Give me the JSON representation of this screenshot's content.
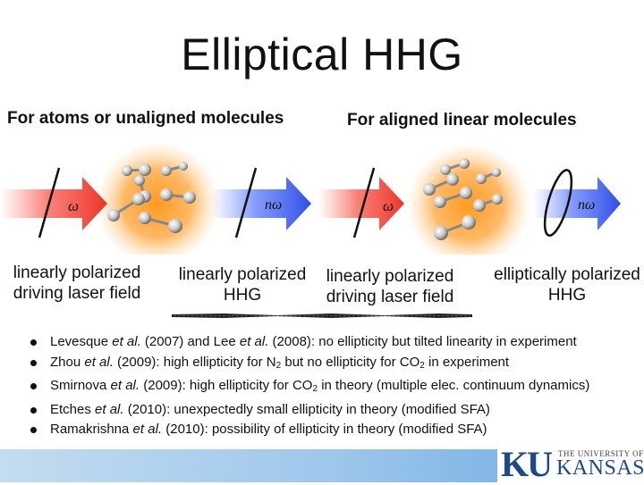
{
  "slide": {
    "title": "Elliptical HHG",
    "left_heading": "For atoms or unaligned molecules",
    "right_heading": "For aligned linear molecules",
    "left_input_caption": [
      "linearly polarized",
      "driving laser field"
    ],
    "left_output_caption": [
      "linearly polarized",
      "HHG"
    ],
    "right_input_caption": [
      "linearly polarized",
      "driving laser field"
    ],
    "right_output_caption": [
      "elliptically polarized",
      "HHG"
    ],
    "omega_label": "ω",
    "n_omega_label": "nω"
  },
  "bullets": [
    [
      {
        "t": "Levesque "
      },
      {
        "t": "et al.",
        "i": true
      },
      {
        "t": " (2007) and Lee "
      },
      {
        "t": "et al.",
        "i": true
      },
      {
        "t": " (2008): no ellipticity but tilted linearity in experiment"
      }
    ],
    [
      {
        "t": "Zhou "
      },
      {
        "t": "et al.",
        "i": true
      },
      {
        "t": " (2009): high ellipticity for N"
      },
      {
        "t": "2",
        "sub": true
      },
      {
        "t": " but no ellipticity for CO"
      },
      {
        "t": "2",
        "sub": true
      },
      {
        "t": " in experiment"
      }
    ],
    [
      {
        "t": "Smirnova "
      },
      {
        "t": "et al.",
        "i": true
      },
      {
        "t": " (2009): high ellipticity for CO"
      },
      {
        "t": "2",
        "sub": true
      },
      {
        "t": " in theory (multiple elec. continuum dynamics)"
      }
    ],
    [
      {
        "t": "Etches "
      },
      {
        "t": "et al.",
        "i": true
      },
      {
        "t": " (2010): unexpectedly small ellipticity in theory (modified SFA)"
      }
    ],
    [
      {
        "t": "Ramakrishna "
      },
      {
        "t": "et al.",
        "i": true
      },
      {
        "t": " (2010): possibility of ellipticity in theory (modified SFA)"
      }
    ]
  ],
  "logo": {
    "ku": "KU",
    "university": "THE UNIVERSITY OF",
    "name": "KANSAS"
  },
  "colors": {
    "red_arrow": "#f03c32",
    "blue_arrow": "#3c5af0",
    "glow": "#ff9a1f",
    "ku_blue": "#1b4a8c"
  }
}
